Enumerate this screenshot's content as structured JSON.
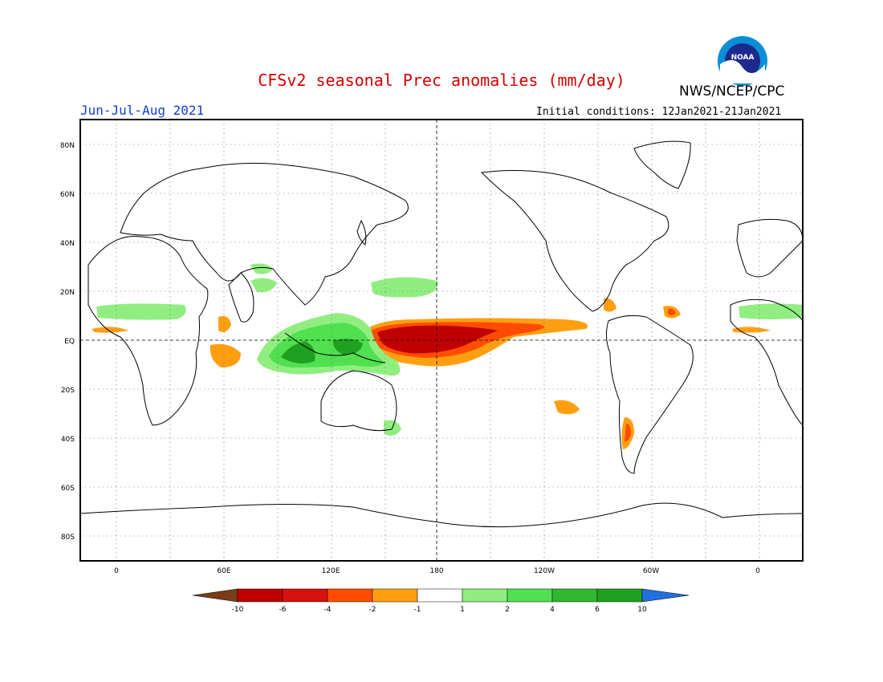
{
  "title": "CFSv2 seasonal Prec anomalies (mm/day)",
  "organization": "NWS/NCEP/CPC",
  "logo_text": "NOAA",
  "season": "Jun-Jul-Aug 2021",
  "initial_conditions": "Initial conditions: 12Jan2021-21Jan2021",
  "lat_labels": [
    "80N",
    "60N",
    "40N",
    "20N",
    "EQ",
    "20S",
    "40S",
    "60S",
    "80S"
  ],
  "lon_labels": [
    "0",
    "60E",
    "120E",
    "180",
    "120W",
    "60W",
    "0"
  ],
  "colorbar": {
    "labels": [
      "-10",
      "-6",
      "-4",
      "-2",
      "-1",
      "1",
      "2",
      "4",
      "6",
      "10"
    ],
    "colors": [
      "#7a3d1a",
      "#c00000",
      "#d81010",
      "#ff4c00",
      "#ff9f10",
      "#ffffff",
      "#90ee80",
      "#50e050",
      "#30b830",
      "#20a020",
      "#2070e0"
    ]
  },
  "colors": {
    "dry_extreme": "#c00000",
    "dry_strong": "#ff4c00",
    "dry_moderate": "#ff9f10",
    "wet_moderate": "#90ee80",
    "wet_strong": "#50e050",
    "wet_extreme": "#20a020"
  }
}
